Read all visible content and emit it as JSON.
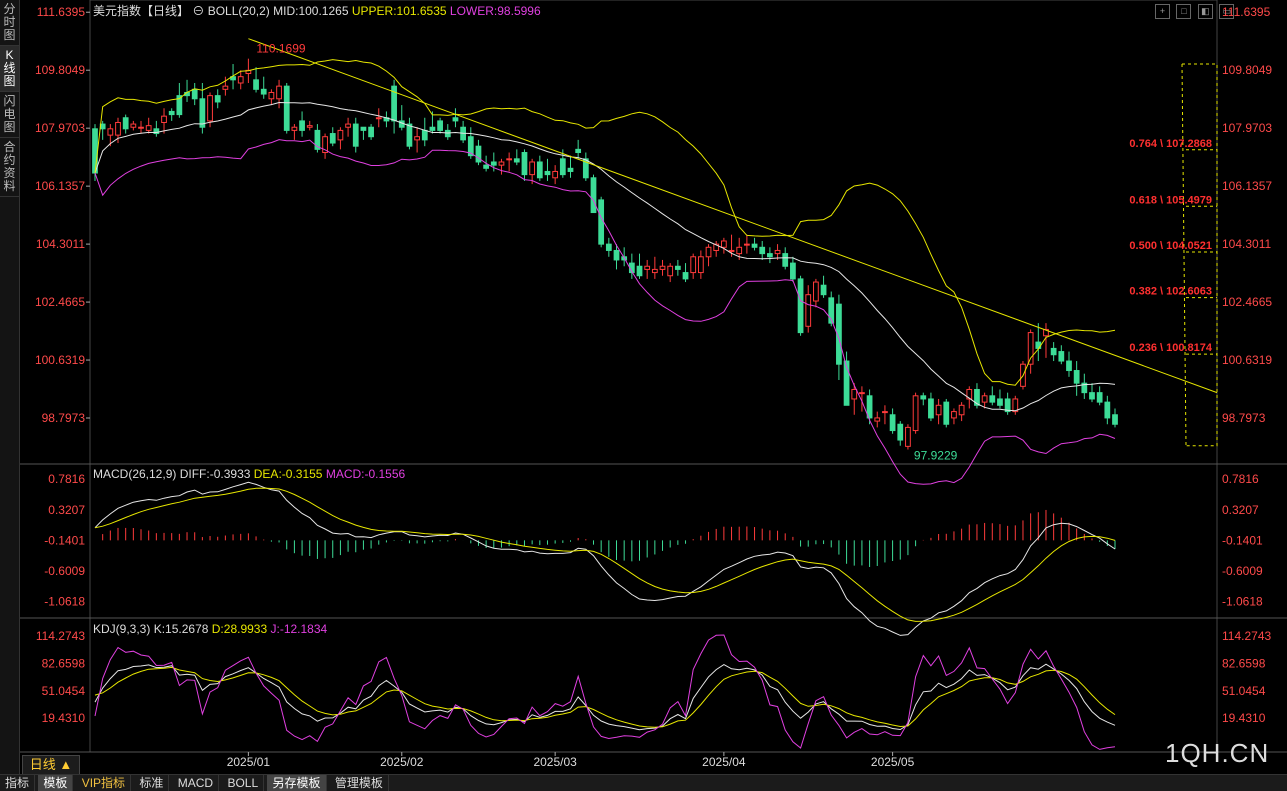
{
  "sidebar": {
    "tabs": [
      {
        "label": "分时图"
      },
      {
        "label": "K线图",
        "active": true
      },
      {
        "label": "闪电图"
      },
      {
        "label": "合约资料"
      }
    ]
  },
  "main_legend": {
    "name": "美元指数【日线】",
    "boll": "BOLL(20,2)",
    "mid": "MID:100.1265",
    "upper": "UPPER:101.6535",
    "lower": "LOWER:98.5996"
  },
  "macd_legend": {
    "name": "MACD(26,12,9)",
    "diff": "DIFF:-0.3933",
    "dea": "DEA:-0.3155",
    "macd": "MACD:-0.1556"
  },
  "kdj_legend": {
    "name": "KDJ(9,3,3)",
    "k": "K:15.2678",
    "d": "D:28.9933",
    "j": "J:-12.1834"
  },
  "window_buttons": [
    "+",
    "□",
    "◧",
    "▭"
  ],
  "bottom_tabs": [
    {
      "label": "指标"
    },
    {
      "label": "模板",
      "selected": true
    },
    {
      "label": "VIP指标",
      "vip": true
    },
    {
      "label": "标准"
    },
    {
      "label": "MACD"
    },
    {
      "label": "BOLL"
    },
    {
      "label": "另存模板",
      "selected": true
    },
    {
      "label": "管理模板"
    }
  ],
  "period_label": "日线 ▲",
  "watermark": "1QH.CN",
  "colors": {
    "up": "#ff3b3b",
    "down": "#3ddc97",
    "mid": "#e6e6e6",
    "upper": "#e6e600",
    "lower": "#e040e0",
    "trend": "#e6e600",
    "fib": "#ff3030",
    "fib_box": "#e6e600"
  },
  "chart_data": {
    "type": "candlestick",
    "x_ticks": [
      "2025/01",
      "2025/02",
      "2025/03",
      "2025/04",
      "2025/05"
    ],
    "y_ticks": [
      "111.6395",
      "109.8049",
      "107.9703",
      "106.1357",
      "104.3011",
      "102.4665",
      "100.6319",
      "98.7973"
    ],
    "ylim": [
      97.5,
      111.9
    ],
    "annotations": {
      "high": "110.1699",
      "low": "97.9229"
    },
    "fibonacci": [
      "0.764 \\ 107.2868",
      "0.618 \\ 105.4979",
      "0.500 \\ 104.0521",
      "0.382 \\ 102.6063",
      "0.236 \\ 100.8174"
    ],
    "candles": [
      [
        107.95,
        108.1,
        106.3,
        106.55
      ],
      [
        108.1,
        108.2,
        107.6,
        107.95
      ],
      [
        107.75,
        108.1,
        107.4,
        107.95
      ],
      [
        107.75,
        108.3,
        107.5,
        108.15
      ],
      [
        108.3,
        108.4,
        107.8,
        107.95
      ],
      [
        108.0,
        108.2,
        107.9,
        108.1
      ],
      [
        108.0,
        108.2,
        107.8,
        108.0
      ],
      [
        107.9,
        108.3,
        107.8,
        108.05
      ],
      [
        107.95,
        108.2,
        107.7,
        107.8
      ],
      [
        108.15,
        108.6,
        107.8,
        108.35
      ],
      [
        108.5,
        108.6,
        108.2,
        108.4
      ],
      [
        109.0,
        109.4,
        108.3,
        108.4
      ],
      [
        109.1,
        109.5,
        108.8,
        109.0
      ],
      [
        109.2,
        109.4,
        108.7,
        108.9
      ],
      [
        108.9,
        109.4,
        107.8,
        108.0
      ],
      [
        108.2,
        109.1,
        108.0,
        109.0
      ],
      [
        109.0,
        109.2,
        108.6,
        108.8
      ],
      [
        109.2,
        109.6,
        109.0,
        109.3
      ],
      [
        109.6,
        110.0,
        109.2,
        109.5
      ],
      [
        109.4,
        109.8,
        109.2,
        109.6
      ],
      [
        109.7,
        110.17,
        109.4,
        109.8
      ],
      [
        109.5,
        109.9,
        109.1,
        109.2
      ],
      [
        109.2,
        109.6,
        108.9,
        109.05
      ],
      [
        108.9,
        109.2,
        108.7,
        109.1
      ],
      [
        108.9,
        109.5,
        108.6,
        109.3
      ],
      [
        109.3,
        109.4,
        107.8,
        107.9
      ],
      [
        107.9,
        108.1,
        107.6,
        108.0
      ],
      [
        108.2,
        108.5,
        107.7,
        107.9
      ],
      [
        108.0,
        108.2,
        107.9,
        108.05
      ],
      [
        107.9,
        108.1,
        107.2,
        107.3
      ],
      [
        107.2,
        107.8,
        107.0,
        107.7
      ],
      [
        107.8,
        108.0,
        107.4,
        107.5
      ],
      [
        107.6,
        108.0,
        107.3,
        107.9
      ],
      [
        108.0,
        108.3,
        107.7,
        108.1
      ],
      [
        108.1,
        108.3,
        107.2,
        107.4
      ],
      [
        108.0,
        108.0,
        107.6,
        107.9
      ],
      [
        108.0,
        108.1,
        107.6,
        107.7
      ],
      [
        108.3,
        108.6,
        108.0,
        108.3
      ],
      [
        108.3,
        108.5,
        108.0,
        108.2
      ],
      [
        109.3,
        109.5,
        107.8,
        108.2
      ],
      [
        108.2,
        108.7,
        107.9,
        108.0
      ],
      [
        108.1,
        108.3,
        107.3,
        107.4
      ],
      [
        107.6,
        108.0,
        107.2,
        107.7
      ],
      [
        107.9,
        108.3,
        107.4,
        107.6
      ],
      [
        108.0,
        108.5,
        107.8,
        107.9
      ],
      [
        108.2,
        108.3,
        107.8,
        107.9
      ],
      [
        107.9,
        108.1,
        107.6,
        107.7
      ],
      [
        108.3,
        108.6,
        108.0,
        108.2
      ],
      [
        108.0,
        108.2,
        107.5,
        107.6
      ],
      [
        107.7,
        108.0,
        107.0,
        107.1
      ],
      [
        107.4,
        107.6,
        106.8,
        106.9
      ],
      [
        106.8,
        107.1,
        106.6,
        106.7
      ],
      [
        106.9,
        107.2,
        106.6,
        106.8
      ],
      [
        106.8,
        107.0,
        106.5,
        106.9
      ],
      [
        107.0,
        107.2,
        106.6,
        107.0
      ],
      [
        107.0,
        107.3,
        106.8,
        106.9
      ],
      [
        107.2,
        107.3,
        106.3,
        106.5
      ],
      [
        106.5,
        107.0,
        106.2,
        106.9
      ],
      [
        106.9,
        107.1,
        106.3,
        106.4
      ],
      [
        106.6,
        107.0,
        106.3,
        106.5
      ],
      [
        106.4,
        106.8,
        106.2,
        106.6
      ],
      [
        107.0,
        107.3,
        106.4,
        106.5
      ],
      [
        106.7,
        107.1,
        106.4,
        106.6
      ],
      [
        107.3,
        107.6,
        107.0,
        107.2
      ],
      [
        107.0,
        107.2,
        106.3,
        106.4
      ],
      [
        106.4,
        106.5,
        105.3,
        105.3
      ],
      [
        105.7,
        105.8,
        104.2,
        104.3
      ],
      [
        104.3,
        104.5,
        103.9,
        104.1
      ],
      [
        104.1,
        104.3,
        103.5,
        103.8
      ],
      [
        103.9,
        104.2,
        103.6,
        103.8
      ],
      [
        103.7,
        104.0,
        103.2,
        103.4
      ],
      [
        103.6,
        104.0,
        103.2,
        103.3
      ],
      [
        103.5,
        103.8,
        103.2,
        103.6
      ],
      [
        103.4,
        103.9,
        103.2,
        103.5
      ],
      [
        103.5,
        103.8,
        103.3,
        103.6
      ],
      [
        103.3,
        103.7,
        103.1,
        103.6
      ],
      [
        103.6,
        103.8,
        103.3,
        103.5
      ],
      [
        103.4,
        103.7,
        103.1,
        103.2
      ],
      [
        103.4,
        104.0,
        103.2,
        103.9
      ],
      [
        103.4,
        104.1,
        103.2,
        103.9
      ],
      [
        103.9,
        104.3,
        103.6,
        104.2
      ],
      [
        104.1,
        104.4,
        103.9,
        104.3
      ],
      [
        104.2,
        104.5,
        104.0,
        104.4
      ],
      [
        104.1,
        104.6,
        103.9,
        104.1
      ],
      [
        104.0,
        104.5,
        103.8,
        104.2
      ],
      [
        104.3,
        104.6,
        104.0,
        104.3
      ],
      [
        104.3,
        104.5,
        104.1,
        104.2
      ],
      [
        104.2,
        104.4,
        103.8,
        104.0
      ],
      [
        104.0,
        104.2,
        103.7,
        103.9
      ],
      [
        104.0,
        104.3,
        103.8,
        104.1
      ],
      [
        104.0,
        104.2,
        103.5,
        103.6
      ],
      [
        103.7,
        103.9,
        103.1,
        103.2
      ],
      [
        103.2,
        103.3,
        101.4,
        101.5
      ],
      [
        101.7,
        103.0,
        101.5,
        102.7
      ],
      [
        102.5,
        103.2,
        102.3,
        103.1
      ],
      [
        103.0,
        103.3,
        102.6,
        102.7
      ],
      [
        102.6,
        102.8,
        101.7,
        101.8
      ],
      [
        102.4,
        102.7,
        100.0,
        100.5
      ],
      [
        100.6,
        100.9,
        99.2,
        99.2
      ],
      [
        99.4,
        99.9,
        98.9,
        99.7
      ],
      [
        99.6,
        99.8,
        99.0,
        99.6
      ],
      [
        99.5,
        99.7,
        98.6,
        98.8
      ],
      [
        98.7,
        99.0,
        98.5,
        98.8
      ],
      [
        99.0,
        99.2,
        98.6,
        99.0
      ],
      [
        98.9,
        99.1,
        98.3,
        98.4
      ],
      [
        98.6,
        98.7,
        97.92,
        98.1
      ],
      [
        97.9,
        98.6,
        97.8,
        98.5
      ],
      [
        98.4,
        99.6,
        98.3,
        99.5
      ],
      [
        99.5,
        99.6,
        99.2,
        99.4
      ],
      [
        99.4,
        99.6,
        98.7,
        98.8
      ],
      [
        98.9,
        99.4,
        98.6,
        99.2
      ],
      [
        99.3,
        99.4,
        98.5,
        98.6
      ],
      [
        98.8,
        99.1,
        98.6,
        99.0
      ],
      [
        98.9,
        99.3,
        98.7,
        99.2
      ],
      [
        99.4,
        99.8,
        99.1,
        99.7
      ],
      [
        99.7,
        99.9,
        99.1,
        99.2
      ],
      [
        99.3,
        99.6,
        99.1,
        99.5
      ],
      [
        99.5,
        99.8,
        99.2,
        99.3
      ],
      [
        99.4,
        99.7,
        99.1,
        99.2
      ],
      [
        99.4,
        99.6,
        98.9,
        99.0
      ],
      [
        99.0,
        99.5,
        98.9,
        99.4
      ],
      [
        99.8,
        100.6,
        99.7,
        100.5
      ],
      [
        100.5,
        101.6,
        100.2,
        101.5
      ],
      [
        101.2,
        101.8,
        100.6,
        101.0
      ],
      [
        101.4,
        101.8,
        100.7,
        101.6
      ],
      [
        101.0,
        101.2,
        100.6,
        100.8
      ],
      [
        100.9,
        101.1,
        100.5,
        100.6
      ],
      [
        100.6,
        100.9,
        100.1,
        100.3
      ],
      [
        100.3,
        100.6,
        99.5,
        99.9
      ],
      [
        99.9,
        100.2,
        99.4,
        99.6
      ],
      [
        99.6,
        99.9,
        99.3,
        99.4
      ],
      [
        99.6,
        99.8,
        99.2,
        99.3
      ],
      [
        99.3,
        99.5,
        98.6,
        98.8
      ],
      [
        98.9,
        99.1,
        98.5,
        98.6
      ]
    ]
  }
}
